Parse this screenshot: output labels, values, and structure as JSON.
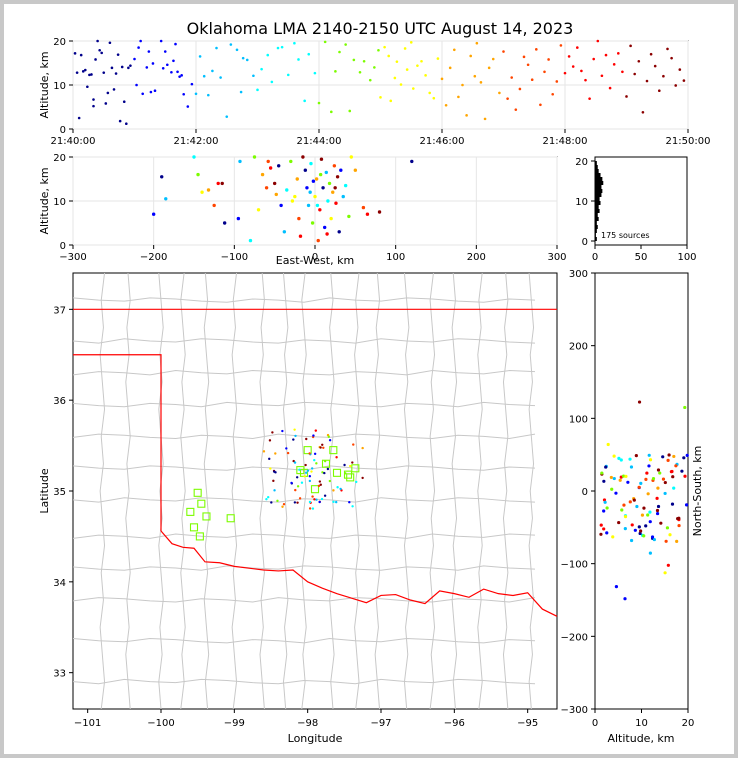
{
  "chart_data": {
    "type": "scatter",
    "title": "Oklahoma LMA 2140-2150 UTC August 14, 2023",
    "source_count_label": "175 sources",
    "colormap_by_time": [
      "#00008b",
      "#0000ff",
      "#00bfff",
      "#00ffff",
      "#7cfc00",
      "#ffff00",
      "#ffa500",
      "#ff4500",
      "#ff0000",
      "#8b0000"
    ],
    "station_color": "#7cfc00",
    "state_border_color": "#ff0000",
    "county_line_color": "#c8c8c8",
    "panels": {
      "time_height": {
        "ylabel": "Altitude, km",
        "xlabel": "",
        "xlim": [
          "21:40:00",
          "21:50:00"
        ],
        "xticks": [
          "21:40:00",
          "21:42:00",
          "21:44:00",
          "21:46:00",
          "21:48:00",
          "21:50:00"
        ],
        "ylim": [
          0,
          20
        ],
        "yticks": [
          "0",
          "10",
          "20"
        ],
        "grid": true
      },
      "ew_height": {
        "ylabel": "Altitude, km",
        "xlabel": "East-West, km",
        "xlim": [
          -300,
          300
        ],
        "xticks": [
          "−300",
          "−200",
          "−100",
          "0",
          "100",
          "200",
          "300"
        ],
        "ylim": [
          0,
          20
        ],
        "yticks": [
          "0",
          "10",
          "20"
        ],
        "grid": true
      },
      "histogram": {
        "xlim": [
          0,
          100
        ],
        "xticks": [
          "0",
          "50",
          "100"
        ],
        "ylim": [
          0,
          20
        ],
        "yticks": [
          "0",
          "10",
          "20"
        ]
      },
      "plan_view": {
        "xlabel": "Longitude",
        "ylabel": "Latitude",
        "xlim": [
          -101.2,
          -94.6
        ],
        "ylim": [
          32.6,
          37.4
        ],
        "xticks": [
          "−101",
          "−100",
          "−99",
          "−98",
          "−97",
          "−96",
          "−95"
        ],
        "yticks": [
          "33",
          "34",
          "35",
          "36",
          "37"
        ]
      },
      "ns_height": {
        "xlabel": "Altitude, km",
        "ylabel": "North-South, km",
        "xlim": [
          0,
          20
        ],
        "xticks": [
          "0",
          "10",
          "20"
        ],
        "ylim": [
          -300,
          300
        ],
        "yticks": [
          "−300",
          "−200",
          "−100",
          "0",
          "100",
          "200",
          "300"
        ]
      }
    },
    "sources_time_alt": [
      {
        "t": 0.1,
        "z": 17.2
      },
      {
        "t": 0.2,
        "z": 12.8
      },
      {
        "t": 0.3,
        "z": 2.5
      },
      {
        "t": 0.4,
        "z": 16.8
      },
      {
        "t": 0.5,
        "z": 13.1
      },
      {
        "t": 0.6,
        "z": 13.4
      },
      {
        "t": 0.7,
        "z": 9.6
      },
      {
        "t": 0.8,
        "z": 12.3
      },
      {
        "t": 0.9,
        "z": 12.4
      },
      {
        "t": 1.0,
        "z": 6.7
      },
      {
        "t": 1.0,
        "z": 5.2
      },
      {
        "t": 1.1,
        "z": 15.8
      },
      {
        "t": 1.2,
        "z": 20.0
      },
      {
        "t": 1.3,
        "z": 17.9
      },
      {
        "t": 1.4,
        "z": 17.3
      },
      {
        "t": 1.5,
        "z": 12.8
      },
      {
        "t": 1.6,
        "z": 5.8
      },
      {
        "t": 1.7,
        "z": 8.2
      },
      {
        "t": 1.8,
        "z": 19.6
      },
      {
        "t": 1.9,
        "z": 13.9
      },
      {
        "t": 2.0,
        "z": 9.0
      },
      {
        "t": 2.1,
        "z": 12.6
      },
      {
        "t": 2.2,
        "z": 16.9
      },
      {
        "t": 2.3,
        "z": 1.8
      },
      {
        "t": 2.4,
        "z": 14.1
      },
      {
        "t": 2.5,
        "z": 6.2
      },
      {
        "t": 2.6,
        "z": 1.2
      },
      {
        "t": 2.7,
        "z": 13.9
      },
      {
        "t": 2.8,
        "z": 14.4
      },
      {
        "t": 3.0,
        "z": 15.9
      },
      {
        "t": 3.1,
        "z": 10.0
      },
      {
        "t": 3.2,
        "z": 18.5
      },
      {
        "t": 3.3,
        "z": 20.0
      },
      {
        "t": 3.4,
        "z": 8.0
      },
      {
        "t": 3.6,
        "z": 14.0
      },
      {
        "t": 3.7,
        "z": 17.6
      },
      {
        "t": 3.8,
        "z": 8.4
      },
      {
        "t": 3.9,
        "z": 14.9
      },
      {
        "t": 4.0,
        "z": 8.7
      },
      {
        "t": 4.3,
        "z": 20.0
      },
      {
        "t": 4.4,
        "z": 13.8
      },
      {
        "t": 4.5,
        "z": 17.6
      },
      {
        "t": 4.6,
        "z": 14.6
      },
      {
        "t": 4.8,
        "z": 12.9
      },
      {
        "t": 4.9,
        "z": 15.5
      },
      {
        "t": 5.0,
        "z": 19.3
      },
      {
        "t": 5.1,
        "z": 13.0
      },
      {
        "t": 5.2,
        "z": 11.9
      },
      {
        "t": 5.3,
        "z": 12.2
      },
      {
        "t": 5.4,
        "z": 7.9
      },
      {
        "t": 5.6,
        "z": 5.1
      },
      {
        "t": 5.8,
        "z": 10.2
      },
      {
        "t": 6.0,
        "z": 8.0
      },
      {
        "t": 6.2,
        "z": 16.5
      },
      {
        "t": 6.4,
        "z": 12.0
      },
      {
        "t": 6.6,
        "z": 7.7
      },
      {
        "t": 6.8,
        "z": 13.2
      },
      {
        "t": 7.0,
        "z": 18.4
      },
      {
        "t": 7.2,
        "z": 11.7
      },
      {
        "t": 7.5,
        "z": 2.8
      },
      {
        "t": 7.7,
        "z": 19.2
      },
      {
        "t": 8.0,
        "z": 18.0
      },
      {
        "t": 8.2,
        "z": 8.4
      },
      {
        "t": 8.3,
        "z": 16.1
      },
      {
        "t": 8.5,
        "z": 15.7
      },
      {
        "t": 8.8,
        "z": 12.1
      },
      {
        "t": 9.0,
        "z": 8.9
      },
      {
        "t": 9.2,
        "z": 13.6
      },
      {
        "t": 9.5,
        "z": 16.8
      },
      {
        "t": 9.7,
        "z": 10.7
      },
      {
        "t": 10.0,
        "z": 18.4
      },
      {
        "t": 10.2,
        "z": 18.6
      },
      {
        "t": 10.5,
        "z": 12.3
      },
      {
        "t": 10.8,
        "z": 19.5
      },
      {
        "t": 11.0,
        "z": 15.8
      },
      {
        "t": 11.3,
        "z": 6.4
      },
      {
        "t": 11.5,
        "z": 17.0
      },
      {
        "t": 11.8,
        "z": 12.7
      },
      {
        "t": 12.0,
        "z": 5.9
      },
      {
        "t": 12.3,
        "z": 19.8
      },
      {
        "t": 12.6,
        "z": 3.9
      },
      {
        "t": 12.8,
        "z": 13.1
      },
      {
        "t": 13.0,
        "z": 17.5
      },
      {
        "t": 13.3,
        "z": 19.2
      },
      {
        "t": 13.5,
        "z": 4.1
      },
      {
        "t": 13.7,
        "z": 15.7
      },
      {
        "t": 14.0,
        "z": 12.9
      },
      {
        "t": 14.2,
        "z": 15.4
      },
      {
        "t": 14.5,
        "z": 11.1
      },
      {
        "t": 14.7,
        "z": 14.0
      },
      {
        "t": 14.9,
        "z": 17.9
      },
      {
        "t": 15.0,
        "z": 7.2
      },
      {
        "t": 15.2,
        "z": 18.6
      },
      {
        "t": 15.4,
        "z": 16.6
      },
      {
        "t": 15.5,
        "z": 6.4
      },
      {
        "t": 15.7,
        "z": 11.6
      },
      {
        "t": 15.8,
        "z": 15.3
      },
      {
        "t": 16.0,
        "z": 10.1
      },
      {
        "t": 16.2,
        "z": 18.3
      },
      {
        "t": 16.3,
        "z": 13.5
      },
      {
        "t": 16.5,
        "z": 19.7
      },
      {
        "t": 16.6,
        "z": 9.2
      },
      {
        "t": 16.8,
        "z": 14.4
      },
      {
        "t": 17.0,
        "z": 15.4
      },
      {
        "t": 17.2,
        "z": 12.2
      },
      {
        "t": 17.4,
        "z": 8.2
      },
      {
        "t": 17.6,
        "z": 7.0
      },
      {
        "t": 17.8,
        "z": 16.0
      },
      {
        "t": 18.0,
        "z": 11.4
      },
      {
        "t": 18.2,
        "z": 5.4
      },
      {
        "t": 18.4,
        "z": 13.9
      },
      {
        "t": 18.6,
        "z": 18.0
      },
      {
        "t": 18.8,
        "z": 7.3
      },
      {
        "t": 19.0,
        "z": 10.0
      },
      {
        "t": 19.2,
        "z": 3.1
      },
      {
        "t": 19.4,
        "z": 16.6
      },
      {
        "t": 19.6,
        "z": 12.0
      },
      {
        "t": 19.7,
        "z": 19.5
      },
      {
        "t": 19.9,
        "z": 10.6
      },
      {
        "t": 20.1,
        "z": 2.3
      },
      {
        "t": 20.3,
        "z": 13.9
      },
      {
        "t": 20.5,
        "z": 15.9
      },
      {
        "t": 20.8,
        "z": 8.2
      },
      {
        "t": 21.0,
        "z": 17.6
      },
      {
        "t": 21.2,
        "z": 6.9
      },
      {
        "t": 21.4,
        "z": 11.7
      },
      {
        "t": 21.6,
        "z": 4.4
      },
      {
        "t": 21.8,
        "z": 9.1
      },
      {
        "t": 22.0,
        "z": 16.4
      },
      {
        "t": 22.2,
        "z": 14.6
      },
      {
        "t": 22.4,
        "z": 11.2
      },
      {
        "t": 22.6,
        "z": 18.1
      },
      {
        "t": 22.8,
        "z": 5.5
      },
      {
        "t": 23.0,
        "z": 13.0
      },
      {
        "t": 23.2,
        "z": 15.8
      },
      {
        "t": 23.4,
        "z": 7.9
      },
      {
        "t": 23.6,
        "z": 10.8
      },
      {
        "t": 23.8,
        "z": 19.0
      },
      {
        "t": 24.0,
        "z": 12.7
      },
      {
        "t": 24.2,
        "z": 16.5
      },
      {
        "t": 24.4,
        "z": 14.2
      },
      {
        "t": 24.6,
        "z": 18.5
      },
      {
        "t": 24.8,
        "z": 13.2
      },
      {
        "t": 25.0,
        "z": 11.1
      },
      {
        "t": 25.2,
        "z": 6.9
      },
      {
        "t": 25.4,
        "z": 15.9
      },
      {
        "t": 25.6,
        "z": 20.0
      },
      {
        "t": 25.8,
        "z": 12.1
      },
      {
        "t": 26.0,
        "z": 16.8
      },
      {
        "t": 26.2,
        "z": 9.3
      },
      {
        "t": 26.4,
        "z": 14.7
      },
      {
        "t": 26.6,
        "z": 17.2
      },
      {
        "t": 26.8,
        "z": 13.0
      },
      {
        "t": 27.0,
        "z": 7.4
      },
      {
        "t": 27.2,
        "z": 18.9
      },
      {
        "t": 27.4,
        "z": 12.5
      },
      {
        "t": 27.6,
        "z": 15.4
      },
      {
        "t": 27.8,
        "z": 3.8
      },
      {
        "t": 28.0,
        "z": 10.9
      },
      {
        "t": 28.2,
        "z": 17.0
      },
      {
        "t": 28.4,
        "z": 14.3
      },
      {
        "t": 28.6,
        "z": 8.7
      },
      {
        "t": 28.8,
        "z": 12.0
      },
      {
        "t": 29.0,
        "z": 18.2
      },
      {
        "t": 29.2,
        "z": 16.1
      },
      {
        "t": 29.4,
        "z": 9.9
      },
      {
        "t": 29.6,
        "z": 13.5
      },
      {
        "t": 29.8,
        "z": 11.0
      }
    ],
    "sources_ew_alt": [
      {
        "x": -190,
        "z": 15.5
      },
      {
        "x": -200,
        "z": 7.0
      },
      {
        "x": -185,
        "z": 10.5
      },
      {
        "x": -150,
        "z": 20.0
      },
      {
        "x": -145,
        "z": 16.0
      },
      {
        "x": -140,
        "z": 12.0
      },
      {
        "x": -132,
        "z": 12.5
      },
      {
        "x": -125,
        "z": 9.0
      },
      {
        "x": -120,
        "z": 14.0
      },
      {
        "x": -115,
        "z": 14.0
      },
      {
        "x": -112,
        "z": 5.0
      },
      {
        "x": -95,
        "z": 6.0
      },
      {
        "x": -93,
        "z": 19.0
      },
      {
        "x": -80,
        "z": 1.0
      },
      {
        "x": -75,
        "z": 20.0
      },
      {
        "x": -70,
        "z": 8.0
      },
      {
        "x": -65,
        "z": 16.0
      },
      {
        "x": -60,
        "z": 13.0
      },
      {
        "x": -55,
        "z": 17.5
      },
      {
        "x": -50,
        "z": 14.0
      },
      {
        "x": -45,
        "z": 18.0
      },
      {
        "x": -42,
        "z": 9.0
      },
      {
        "x": -38,
        "z": 3.0
      },
      {
        "x": -35,
        "z": 12.5
      },
      {
        "x": -30,
        "z": 19.0
      },
      {
        "x": -25,
        "z": 11.0
      },
      {
        "x": -22,
        "z": 15.0
      },
      {
        "x": -20,
        "z": 6.0
      },
      {
        "x": -18,
        "z": 2.0
      },
      {
        "x": -15,
        "z": 20.0
      },
      {
        "x": -12,
        "z": 17.0
      },
      {
        "x": -10,
        "z": 13.0
      },
      {
        "x": -8,
        "z": 9.0
      },
      {
        "x": -5,
        "z": 18.5
      },
      {
        "x": -3,
        "z": 5.0
      },
      {
        "x": 0,
        "z": 11.0
      },
      {
        "x": 2,
        "z": 15.0
      },
      {
        "x": 4,
        "z": 1.0
      },
      {
        "x": 6,
        "z": 8.0
      },
      {
        "x": 8,
        "z": 19.5
      },
      {
        "x": 10,
        "z": 13.0
      },
      {
        "x": 12,
        "z": 4.0
      },
      {
        "x": 14,
        "z": 16.5
      },
      {
        "x": 16,
        "z": 10.0
      },
      {
        "x": 18,
        "z": 14.0
      },
      {
        "x": 20,
        "z": 6.0
      },
      {
        "x": 22,
        "z": 12.0
      },
      {
        "x": 24,
        "z": 18.0
      },
      {
        "x": 26,
        "z": 9.5
      },
      {
        "x": 28,
        "z": 15.5
      },
      {
        "x": 30,
        "z": 3.0
      },
      {
        "x": 32,
        "z": 17.0
      },
      {
        "x": 35,
        "z": 11.0
      },
      {
        "x": 38,
        "z": 13.5
      },
      {
        "x": 42,
        "z": 6.5
      },
      {
        "x": 45,
        "z": 20.0
      },
      {
        "x": 50,
        "z": 17.0
      },
      {
        "x": 60,
        "z": 8.5
      },
      {
        "x": 65,
        "z": 7.0
      },
      {
        "x": 80,
        "z": 7.5
      },
      {
        "x": 120,
        "z": 19.0
      },
      {
        "x": -2,
        "z": 14.5
      },
      {
        "x": -6,
        "z": 12.0
      },
      {
        "x": 3,
        "z": 9.0
      },
      {
        "x": 7,
        "z": 16.0
      },
      {
        "x": -28,
        "z": 10.0
      },
      {
        "x": -48,
        "z": 11.5
      },
      {
        "x": -58,
        "z": 19.0
      },
      {
        "x": 15,
        "z": 2.5
      },
      {
        "x": 25,
        "z": 13.0
      }
    ],
    "histogram_counts": [
      2,
      1,
      2,
      3,
      2,
      4,
      3,
      5,
      4,
      6,
      5,
      7,
      8,
      7,
      9,
      8,
      6,
      4,
      3,
      2
    ]
  }
}
